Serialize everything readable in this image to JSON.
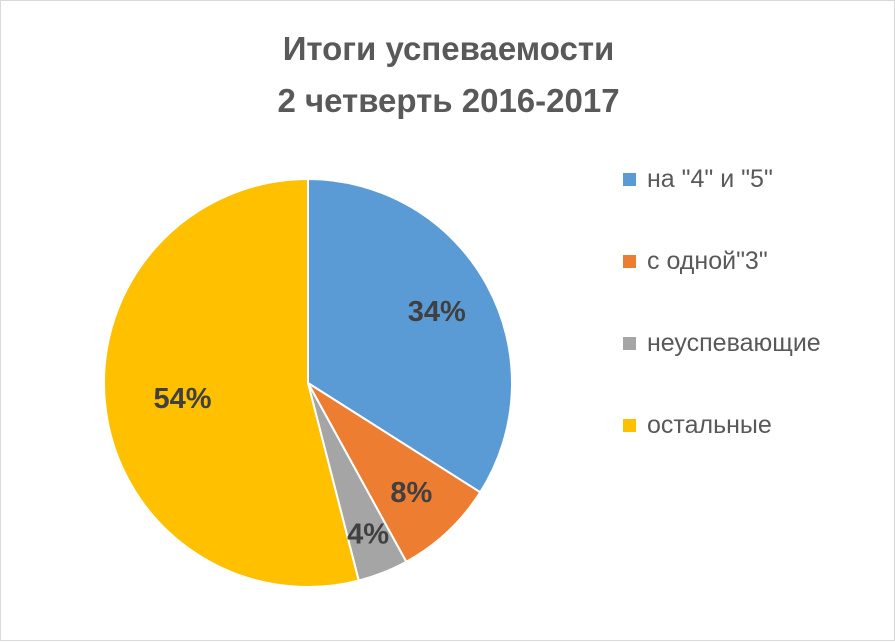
{
  "chart_data": {
    "type": "pie",
    "title_lines": [
      "Итоги успеваемости",
      "2 четверть 2016-2017"
    ],
    "slices": [
      {
        "label": "на \"4\" и \"5\"",
        "value": 34,
        "data_label": "34%",
        "color": "#5b9bd5"
      },
      {
        "label": "с одной\"3\"",
        "value": 8,
        "data_label": "8%",
        "color": "#ed7d31"
      },
      {
        "label": "неуспевающие",
        "value": 4,
        "data_label": "4%",
        "color": "#a5a5a5"
      },
      {
        "label": "остальные",
        "value": 54,
        "data_label": "54%",
        "color": "#ffc000"
      }
    ],
    "legend_position": "right"
  }
}
